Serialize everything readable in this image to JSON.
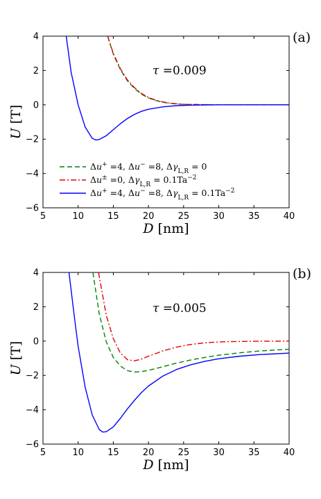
{
  "chart_data": [
    {
      "panel": "(a)",
      "type": "line",
      "annotation": "τ =0.009",
      "xlabel": "D [nm]",
      "ylabel": "U [T]",
      "xlim": [
        5,
        40
      ],
      "ylim": [
        -6,
        4
      ],
      "xticks": [
        5,
        10,
        15,
        20,
        25,
        30,
        35,
        40
      ],
      "yticks": [
        -6,
        -4,
        -2,
        0,
        2,
        4
      ],
      "grid": false,
      "legend_position": "bottom-left",
      "legend_labels_visible": true,
      "series": [
        {
          "name": "Δu⁺ =4, Δu⁻ =8, Δγ_{L,R} = 0",
          "color": "#008000",
          "style": "dashed",
          "x": [
            14.2,
            15,
            16,
            17,
            18,
            19,
            20,
            21,
            22,
            23,
            24,
            25,
            26,
            28,
            30,
            33,
            36,
            40
          ],
          "y": [
            4.0,
            2.95,
            2.05,
            1.4,
            0.95,
            0.62,
            0.4,
            0.25,
            0.15,
            0.09,
            0.05,
            0.03,
            0.02,
            0.01,
            0.0,
            0.0,
            0.0,
            0.0
          ]
        },
        {
          "name": "Δu^± =0, Δγ_{L,R} = 0.1Ta⁻²",
          "color": "#e00000",
          "style": "dashdot",
          "x": [
            14.2,
            15,
            16,
            17,
            18,
            19,
            20,
            21,
            22,
            23,
            24,
            25,
            26,
            28,
            30,
            33,
            36,
            40
          ],
          "y": [
            4.0,
            3.0,
            2.1,
            1.45,
            1.0,
            0.66,
            0.43,
            0.27,
            0.17,
            0.1,
            0.06,
            0.03,
            0.02,
            0.01,
            0.0,
            0.0,
            0.0,
            0.0
          ]
        },
        {
          "name": "Δu⁺ =4, Δu⁻ =8, Δγ_{L,R} = 0.1Ta⁻²",
          "color": "#0000ff",
          "style": "solid",
          "x": [
            8.3,
            9,
            10,
            11,
            12,
            12.5,
            13,
            14,
            15,
            16,
            17,
            18,
            19,
            20,
            22,
            24,
            26,
            28,
            30,
            33,
            36,
            40
          ],
          "y": [
            4.0,
            1.9,
            0.0,
            -1.3,
            -1.95,
            -2.05,
            -2.02,
            -1.8,
            -1.45,
            -1.1,
            -0.8,
            -0.56,
            -0.38,
            -0.26,
            -0.12,
            -0.05,
            -0.02,
            -0.01,
            0.0,
            0.0,
            0.0,
            0.0
          ]
        }
      ]
    },
    {
      "panel": "(b)",
      "type": "line",
      "annotation": "τ =0.005",
      "xlabel": "D [nm]",
      "ylabel": "U [T]",
      "xlim": [
        5,
        40
      ],
      "ylim": [
        -6,
        4
      ],
      "xticks": [
        5,
        10,
        15,
        20,
        25,
        30,
        35,
        40
      ],
      "yticks": [
        -6,
        -4,
        -2,
        0,
        2,
        4
      ],
      "grid": false,
      "legend_labels_visible": false,
      "series": [
        {
          "name": "",
          "color": "#008000",
          "style": "dashed",
          "x": [
            12.1,
            13,
            14,
            15,
            16,
            17,
            18,
            19,
            20,
            22,
            24,
            26,
            28,
            30,
            33,
            36,
            40
          ],
          "y": [
            4.0,
            1.6,
            -0.05,
            -0.95,
            -1.45,
            -1.72,
            -1.8,
            -1.78,
            -1.7,
            -1.5,
            -1.28,
            -1.1,
            -0.95,
            -0.82,
            -0.68,
            -0.57,
            -0.47
          ]
        },
        {
          "name": "",
          "color": "#e00000",
          "style": "dashdot",
          "x": [
            12.9,
            14,
            15,
            16,
            17,
            18,
            19,
            20,
            22,
            24,
            26,
            28,
            30,
            33,
            36,
            40
          ],
          "y": [
            4.0,
            1.5,
            0.15,
            -0.7,
            -1.08,
            -1.15,
            -1.05,
            -0.88,
            -0.58,
            -0.35,
            -0.2,
            -0.1,
            -0.05,
            -0.02,
            -0.01,
            0.0
          ]
        },
        {
          "name": "",
          "color": "#0000ff",
          "style": "solid",
          "x": [
            8.7,
            9.5,
            10,
            11,
            12,
            13,
            13.5,
            14,
            15,
            16,
            17,
            18,
            19,
            20,
            22,
            24,
            26,
            28,
            30,
            33,
            36,
            40
          ],
          "y": [
            4.0,
            1.3,
            -0.3,
            -2.7,
            -4.3,
            -5.15,
            -5.3,
            -5.28,
            -5.0,
            -4.5,
            -3.95,
            -3.45,
            -3.0,
            -2.62,
            -2.05,
            -1.65,
            -1.38,
            -1.18,
            -1.03,
            -0.88,
            -0.78,
            -0.7
          ]
        }
      ]
    }
  ]
}
